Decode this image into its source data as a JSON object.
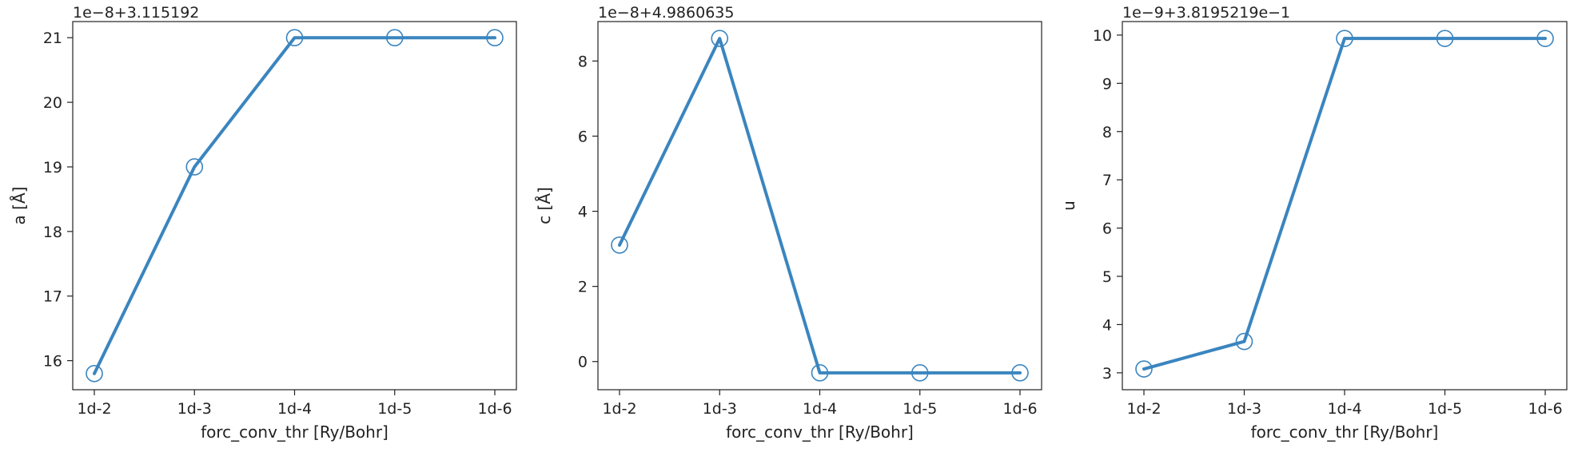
{
  "style": {
    "line_color": "#3a85bf",
    "marker_edge_color": "#3a85bf",
    "axis_color": "#222222"
  },
  "chart_data": [
    {
      "type": "line",
      "categories": [
        "1d-2",
        "1d-3",
        "1d-4",
        "1d-5",
        "1d-6"
      ],
      "values": [
        15.8,
        19.0,
        21.0,
        21.0,
        21.0
      ],
      "offset_text": "1e−8+3.115192",
      "xlabel": "forc_conv_thr [Ry/Bohr]",
      "ylabel": "a [Å]",
      "ylim": [
        15.55,
        21.25
      ],
      "yticks": [
        16,
        17,
        18,
        19,
        20,
        21
      ],
      "ytick_labels": [
        "16",
        "17",
        "18",
        "19",
        "20",
        "21"
      ],
      "grid": false,
      "marker": "open-circle"
    },
    {
      "type": "line",
      "categories": [
        "1d-2",
        "1d-3",
        "1d-4",
        "1d-5",
        "1d-6"
      ],
      "values": [
        3.1,
        8.6,
        -0.3,
        -0.3,
        -0.3
      ],
      "offset_text": "1e−8+4.9860635",
      "xlabel": "forc_conv_thr [Ry/Bohr]",
      "ylabel": "c [Å]",
      "ylim": [
        -0.75,
        9.05
      ],
      "yticks": [
        0,
        2,
        4,
        6,
        8
      ],
      "ytick_labels": [
        "0",
        "2",
        "4",
        "6",
        "8"
      ],
      "grid": false,
      "marker": "open-circle"
    },
    {
      "type": "line",
      "categories": [
        "1d-2",
        "1d-3",
        "1d-4",
        "1d-5",
        "1d-6"
      ],
      "values": [
        3.08,
        3.65,
        9.93,
        9.93,
        9.93
      ],
      "offset_text": "1e−9+3.8195219e−1",
      "xlabel": "forc_conv_thr [Ry/Bohr]",
      "ylabel": "u",
      "ylim": [
        2.65,
        10.28
      ],
      "yticks": [
        3,
        4,
        5,
        6,
        7,
        8,
        9,
        10
      ],
      "ytick_labels": [
        "3",
        "4",
        "5",
        "6",
        "7",
        "8",
        "9",
        "10"
      ],
      "grid": false,
      "marker": "open-circle"
    }
  ]
}
